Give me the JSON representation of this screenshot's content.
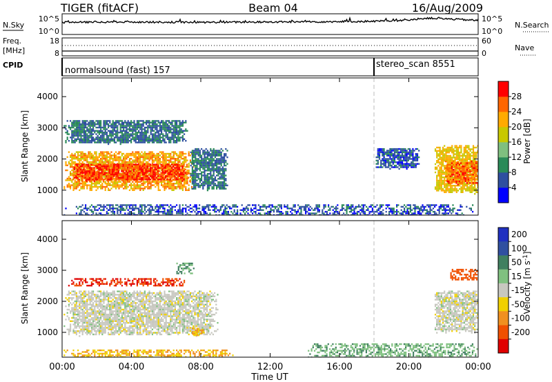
{
  "header": {
    "station": "TIGER (fitACF)",
    "beam": "Beam 04",
    "date": "16/Aug/2009"
  },
  "noise_panel": {
    "left_label": "N.Sky",
    "left_ticks": [
      "10^5",
      "10^0"
    ],
    "right_label": "N.Search",
    "right_ticks": [
      "10^5",
      "10^0"
    ]
  },
  "freq_panel": {
    "left_label_top": "Freq.",
    "left_label_bottom": "[MHz]",
    "left_ticks": [
      "18",
      "8"
    ],
    "right_label": "Nave",
    "right_ticks": [
      "60",
      "0"
    ]
  },
  "cpid_panel": {
    "label": "CPID",
    "programs": [
      {
        "text": "normalsound (fast) 157",
        "start_hour": 0
      },
      {
        "text": "stereo_scan 8551",
        "start_hour": 18
      }
    ]
  },
  "time_axis": {
    "label": "Time UT",
    "ticks": [
      "00:00",
      "04:00",
      "08:00",
      "12:00",
      "16:00",
      "20:00",
      "00:00"
    ]
  },
  "power_colorbar": {
    "label": "Power [dB]",
    "ticks": [
      "28",
      "24",
      "20",
      "16",
      "12",
      "8",
      "4"
    ],
    "colors": [
      "#0000ff",
      "#2e4fa0",
      "#2a8a58",
      "#7fbf7f",
      "#c8c800",
      "#ffaa00",
      "#ff6600",
      "#ff0000"
    ]
  },
  "velocity_colorbar": {
    "label": "Velocity [m s",
    "label_superscript": "-1",
    "label_end": "]",
    "ticks": [
      "200",
      "100",
      "50",
      "15",
      "-15",
      "-50",
      "-100",
      "-200"
    ],
    "colors": [
      "#2030c0",
      "#3050a0",
      "#408060",
      "#80c080",
      "#c8c8c0",
      "#f0d000",
      "#f09020",
      "#f05000",
      "#e00000"
    ]
  },
  "chart_data": {
    "type": "heatmap",
    "title": "TIGER (fitACF) Beam 04 16/Aug/2009",
    "xlabel": "Time UT",
    "ylabel": "Slant Range [km]",
    "x_range_hours": [
      0,
      24
    ],
    "x_ticks": [
      "00:00",
      "04:00",
      "08:00",
      "12:00",
      "16:00",
      "20:00",
      "00:00"
    ],
    "y_range_km": [
      200,
      4600
    ],
    "y_ticks": [
      1000,
      2000,
      3000,
      4000
    ],
    "y_tick_labels": [
      "1000",
      "2000",
      "3000",
      "4000"
    ],
    "panels": [
      {
        "name": "Power",
        "unit": "dB",
        "colorbar_range": [
          0,
          32
        ],
        "echo_regions": [
          {
            "t_start": 0.0,
            "t_end": 7.6,
            "range_km": [
              1000,
              2300
            ],
            "value": 22
          },
          {
            "t_start": 0.5,
            "t_end": 7.4,
            "range_km": [
              1300,
              1900
            ],
            "value": 28
          },
          {
            "t_start": 0.0,
            "t_end": 7.3,
            "range_km": [
              2500,
              3300
            ],
            "value": 8
          },
          {
            "t_start": 7.3,
            "t_end": 9.5,
            "range_km": [
              1000,
              2400
            ],
            "value": 8
          },
          {
            "t_start": 21.4,
            "t_end": 24.0,
            "range_km": [
              900,
              2500
            ],
            "value": 20
          },
          {
            "t_start": 22.0,
            "t_end": 24.0,
            "range_km": [
              1200,
              2000
            ],
            "value": 26
          },
          {
            "t_start": 18.0,
            "t_end": 20.6,
            "range_km": [
              1700,
              2400
            ],
            "value": 6
          },
          {
            "t_start": 0.0,
            "t_end": 24.0,
            "range_km": [
              200,
              600
            ],
            "value": 6
          }
        ]
      },
      {
        "name": "Velocity",
        "unit": "m s-1",
        "colorbar_range": [
          -250,
          250
        ],
        "echo_regions": [
          {
            "t_start": 0.0,
            "t_end": 9.0,
            "range_km": [
              900,
              2400
            ],
            "value": 0
          },
          {
            "t_start": 0.0,
            "t_end": 7.4,
            "range_km": [
              2500,
              2800
            ],
            "value": -200
          },
          {
            "t_start": 6.5,
            "t_end": 7.6,
            "range_km": [
              2900,
              3300
            ],
            "value": 50
          },
          {
            "t_start": 7.4,
            "t_end": 8.2,
            "range_km": [
              900,
              1200
            ],
            "value": -50
          },
          {
            "t_start": 21.4,
            "t_end": 24.0,
            "range_km": [
              1000,
              2400
            ],
            "value": 0
          },
          {
            "t_start": 22.3,
            "t_end": 24.0,
            "range_km": [
              2700,
              3100
            ],
            "value": -150
          },
          {
            "t_start": 0.0,
            "t_end": 10.0,
            "range_km": [
              200,
              500
            ],
            "value": -50
          },
          {
            "t_start": 14.0,
            "t_end": 24.0,
            "range_km": [
              200,
              700
            ],
            "value": 40
          }
        ]
      }
    ],
    "sky_noise_log10": {
      "hours": [
        0,
        4,
        8,
        12,
        16,
        18,
        20,
        21,
        22,
        23,
        24
      ],
      "values": [
        3.0,
        3.1,
        3.0,
        3.1,
        3.2,
        3.3,
        3.6,
        4.2,
        4.0,
        3.8,
        3.5
      ]
    },
    "frequency_mhz": {
      "hours": [
        0,
        24
      ],
      "values": [
        12,
        12
      ]
    },
    "nave": {
      "hours": [
        0,
        24
      ],
      "values": [
        28,
        28
      ]
    }
  }
}
